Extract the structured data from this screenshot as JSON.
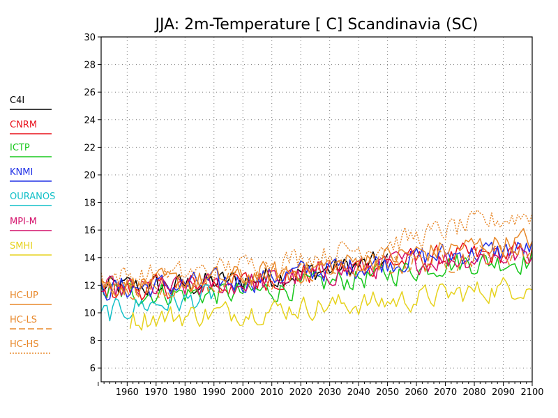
{
  "chart_data": {
    "type": "line",
    "title": "JJA: 2m-Temperature [  C] Scandinavia (SC)",
    "xlabel": "",
    "ylabel": "",
    "xlim": [
      1951,
      2100
    ],
    "ylim": [
      5,
      30
    ],
    "x_ticks": [
      1960,
      1970,
      1980,
      1990,
      2000,
      2010,
      2020,
      2030,
      2040,
      2050,
      2060,
      2070,
      2080,
      2090,
      2100
    ],
    "y_ticks": [
      6,
      8,
      10,
      12,
      14,
      16,
      18,
      20,
      22,
      24,
      26,
      28,
      30
    ],
    "grid": true,
    "legend_position": "left",
    "series": [
      {
        "name": "C4I",
        "color": "#000000",
        "dash": "solid",
        "start": 1951,
        "end": 2050,
        "anchors": [
          [
            1951,
            11.8
          ],
          [
            1980,
            12.0
          ],
          [
            2000,
            12.4
          ],
          [
            2020,
            12.9
          ],
          [
            2050,
            13.6
          ]
        ]
      },
      {
        "name": "CNRM",
        "color": "#e8101a",
        "dash": "solid",
        "start": 1951,
        "end": 2100,
        "anchors": [
          [
            1951,
            11.6
          ],
          [
            1980,
            11.9
          ],
          [
            2000,
            12.2
          ],
          [
            2020,
            12.8
          ],
          [
            2050,
            13.6
          ],
          [
            2070,
            14.0
          ],
          [
            2100,
            14.3
          ]
        ]
      },
      {
        "name": "ICTP",
        "color": "#19c81e",
        "dash": "solid",
        "start": 1951,
        "end": 2100,
        "anchors": [
          [
            1951,
            11.5
          ],
          [
            1980,
            11.4
          ],
          [
            2000,
            11.4
          ],
          [
            2020,
            11.9
          ],
          [
            2050,
            12.8
          ],
          [
            2070,
            13.6
          ],
          [
            2100,
            13.8
          ]
        ]
      },
      {
        "name": "KNMI",
        "color": "#2030e6",
        "dash": "solid",
        "start": 1951,
        "end": 2100,
        "anchors": [
          [
            1951,
            11.7
          ],
          [
            1980,
            12.0
          ],
          [
            2000,
            12.3
          ],
          [
            2020,
            12.9
          ],
          [
            2050,
            13.7
          ],
          [
            2070,
            14.2
          ],
          [
            2100,
            14.6
          ]
        ]
      },
      {
        "name": "OURANOS",
        "color": "#14c0c8",
        "dash": "solid",
        "start": 1951,
        "end": 1990,
        "anchors": [
          [
            1951,
            9.8
          ],
          [
            1965,
            10.6
          ],
          [
            1980,
            10.8
          ],
          [
            1990,
            11.3
          ]
        ]
      },
      {
        "name": "MPI-M",
        "color": "#d4106a",
        "dash": "solid",
        "start": 1951,
        "end": 2100,
        "anchors": [
          [
            1951,
            11.6
          ],
          [
            1980,
            11.8
          ],
          [
            2000,
            12.1
          ],
          [
            2020,
            12.6
          ],
          [
            2050,
            13.5
          ],
          [
            2070,
            13.9
          ],
          [
            2100,
            14.2
          ]
        ]
      },
      {
        "name": "SMHI",
        "color": "#e6d21e",
        "dash": "solid",
        "start": 1961,
        "end": 2100,
        "anchors": [
          [
            1961,
            9.6
          ],
          [
            1980,
            9.8
          ],
          [
            2000,
            10.1
          ],
          [
            2020,
            10.4
          ],
          [
            2050,
            10.8
          ],
          [
            2070,
            11.3
          ],
          [
            2100,
            12.0
          ]
        ]
      },
      {
        "name": "HC-UP",
        "color": "#e8882a",
        "dash": "solid",
        "start": 1951,
        "end": 2100,
        "anchors": [
          [
            1951,
            12.0
          ],
          [
            1980,
            12.2
          ],
          [
            2000,
            12.6
          ],
          [
            2020,
            13.1
          ],
          [
            2050,
            14.0
          ],
          [
            2070,
            14.6
          ],
          [
            2100,
            15.3
          ]
        ]
      },
      {
        "name": "HC-LS",
        "color": "#e8882a",
        "dash": "longdash",
        "start": 1951,
        "end": 2100,
        "anchors": [
          [
            1951,
            11.8
          ],
          [
            1980,
            12.0
          ],
          [
            2000,
            12.2
          ],
          [
            2020,
            12.8
          ],
          [
            2050,
            13.5
          ],
          [
            2070,
            13.9
          ],
          [
            2100,
            14.5
          ]
        ]
      },
      {
        "name": "HC-HS",
        "color": "#e8882a",
        "dash": "dotted",
        "start": 1951,
        "end": 2100,
        "anchors": [
          [
            1951,
            12.6
          ],
          [
            1980,
            12.8
          ],
          [
            2000,
            13.4
          ],
          [
            2020,
            14.0
          ],
          [
            2050,
            15.0
          ],
          [
            2070,
            16.0
          ],
          [
            2100,
            17.2
          ]
        ]
      }
    ]
  }
}
